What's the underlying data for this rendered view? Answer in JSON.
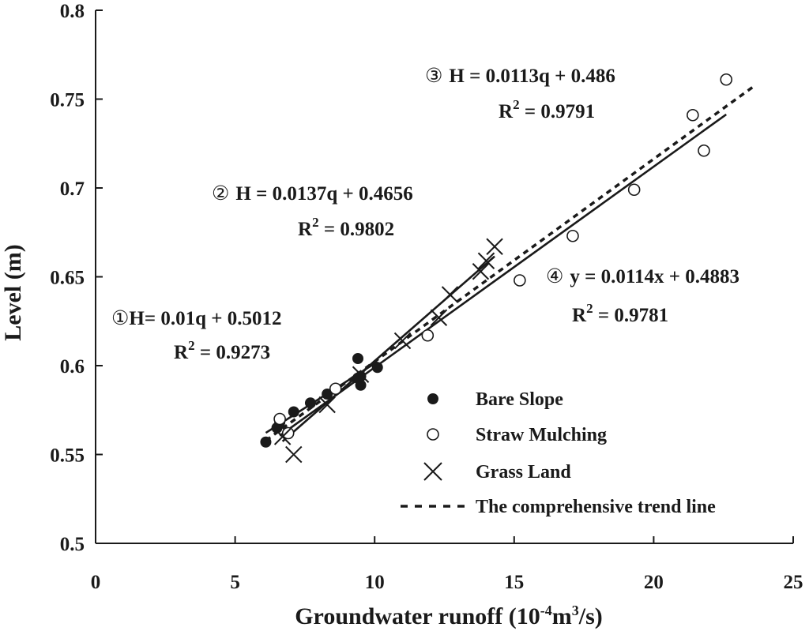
{
  "chart_data": {
    "type": "scatter",
    "xlabel": "Groundwater runoff (10",
    "xlabel_sup1": "-4",
    "xlabel_mid": "m",
    "xlabel_sup2": "3",
    "xlabel_end": "/s)",
    "ylabel": "Level (m)",
    "xlim": [
      0,
      25
    ],
    "ylim": [
      0.5,
      0.8
    ],
    "x_ticks": [
      0,
      5,
      10,
      15,
      20,
      25
    ],
    "y_ticks": [
      0.5,
      0.55,
      0.6,
      0.65,
      0.7,
      0.75,
      0.8
    ],
    "x_tick_labels": [
      "0",
      "5",
      "10",
      "15",
      "20",
      "25"
    ],
    "y_tick_labels": [
      "0.5",
      "0.55",
      "0.6",
      "0.65",
      "0.7",
      "0.75",
      "0.8"
    ],
    "grid": false,
    "legend_position": "bottom-right",
    "series": [
      {
        "name": "Bare Slope",
        "marker": "filled-circle",
        "color": "#1a1a1a",
        "x": [
          6.1,
          6.5,
          6.6,
          7.1,
          7.7,
          8.3,
          9.4,
          9.4,
          9.5,
          9.5,
          10.1
        ],
        "y": [
          0.557,
          0.565,
          0.568,
          0.574,
          0.579,
          0.584,
          0.593,
          0.604,
          0.589,
          0.594,
          0.599
        ]
      },
      {
        "name": "Straw Mulching",
        "marker": "open-circle",
        "color": "#1a1a1a",
        "x": [
          6.6,
          6.9,
          8.6,
          11.9,
          15.2,
          17.1,
          19.3,
          21.4,
          21.8,
          22.6
        ],
        "y": [
          0.57,
          0.562,
          0.587,
          0.617,
          0.648,
          0.673,
          0.699,
          0.741,
          0.721,
          0.761
        ]
      },
      {
        "name": "Grass Land",
        "marker": "cross",
        "color": "#1a1a1a",
        "x": [
          6.7,
          7.1,
          8.3,
          9.5,
          11.0,
          12.3,
          12.7,
          13.8,
          14.0,
          14.3
        ],
        "y": [
          0.56,
          0.55,
          0.578,
          0.595,
          0.614,
          0.627,
          0.64,
          0.653,
          0.659,
          0.667
        ]
      }
    ],
    "trend_lines": [
      {
        "id": "bare-slope-fit",
        "series": "Bare Slope",
        "style": "solid",
        "slope": 0.01,
        "intercept": 0.5012,
        "x_range": [
          6.1,
          10.1
        ],
        "label_num": "①",
        "equation": "H= 0.01q + 0.5012",
        "r2": "0.9273"
      },
      {
        "id": "grass-land-fit",
        "series": "Grass Land",
        "style": "solid",
        "slope": 0.0137,
        "intercept": 0.4656,
        "x_range": [
          6.7,
          14.3
        ],
        "label_num": "②",
        "equation": "H = 0.0137q + 0.4656",
        "r2": "0.9802"
      },
      {
        "id": "straw-mulching-fit",
        "series": "Straw Mulching",
        "style": "solid",
        "slope": 0.0113,
        "intercept": 0.486,
        "x_range": [
          6.6,
          22.6
        ],
        "label_num": "③",
        "equation": "H = 0.0113q + 0.486",
        "r2": "0.9791"
      },
      {
        "id": "comprehensive-fit",
        "series": "The comprehensive trend line",
        "style": "dashed",
        "slope": 0.0114,
        "intercept": 0.4883,
        "x_range": [
          6.1,
          23.6
        ],
        "label_num": "④",
        "equation": "y = 0.0114x + 0.4883",
        "r2": "0.9781"
      }
    ],
    "r2_prefix": "R",
    "r2_sup": "2",
    "r2_eq": " = ",
    "legend": [
      {
        "label": "Bare Slope",
        "marker": "filled-circle"
      },
      {
        "label": "Straw Mulching",
        "marker": "open-circle"
      },
      {
        "label": "Grass Land",
        "marker": "cross"
      },
      {
        "label": "The comprehensive trend line",
        "marker": "dashed-line"
      }
    ]
  }
}
